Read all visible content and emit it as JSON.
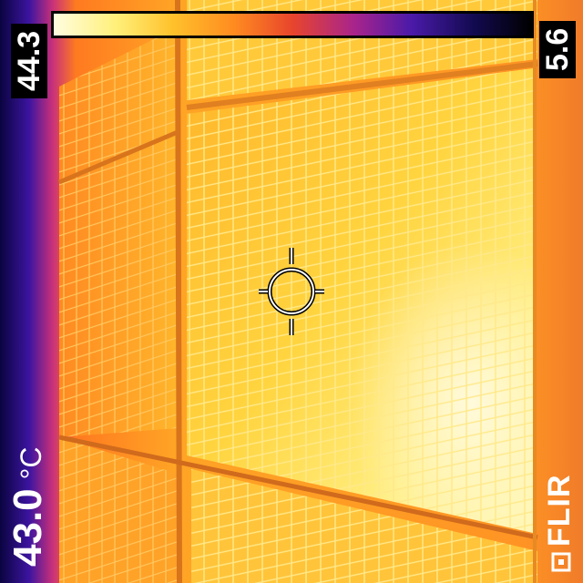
{
  "scale": {
    "max": "44.3",
    "min": "5.6",
    "gradient": [
      "#fffde0",
      "#fff07a",
      "#ffc12b",
      "#ff8a20",
      "#e8452c",
      "#a8248c",
      "#4a1aa8",
      "#120a50",
      "#000000"
    ]
  },
  "spot": {
    "value": "43.0",
    "unit": "°C"
  },
  "brand": {
    "name": "FLIR"
  },
  "icons": {
    "crosshair": "crosshair-icon",
    "brand": "flir-logo-icon"
  },
  "colors": {
    "hot_panel": "#ffd640",
    "warm_edge": "#ff9a2a",
    "cool_edge": "#2a0f80",
    "label_bg": "#000000",
    "label_text": "#ffffff"
  }
}
